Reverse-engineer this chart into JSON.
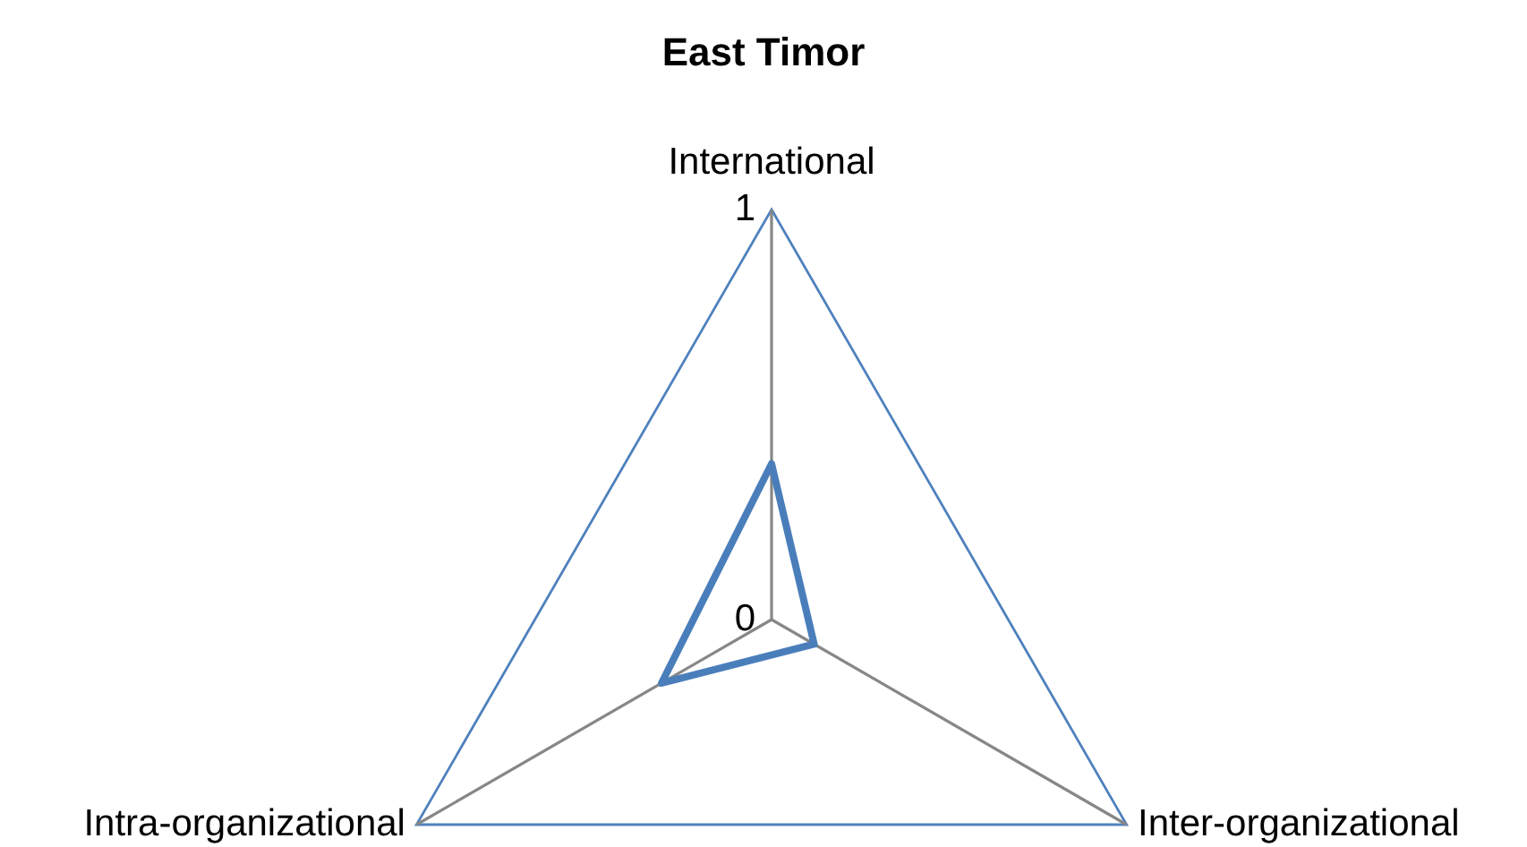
{
  "chart_data": {
    "type": "radar",
    "title": "East Timor",
    "categories": [
      "International",
      "Inter-organizational",
      "Intra-organizational"
    ],
    "series": [
      {
        "color": "#4a7ebb",
        "values": [
          0.38,
          0.12,
          0.31
        ]
      }
    ],
    "ylim": [
      0,
      1
    ],
    "yticks": [
      0,
      1
    ],
    "grid": true,
    "marker": "none",
    "line_style": "solid"
  }
}
